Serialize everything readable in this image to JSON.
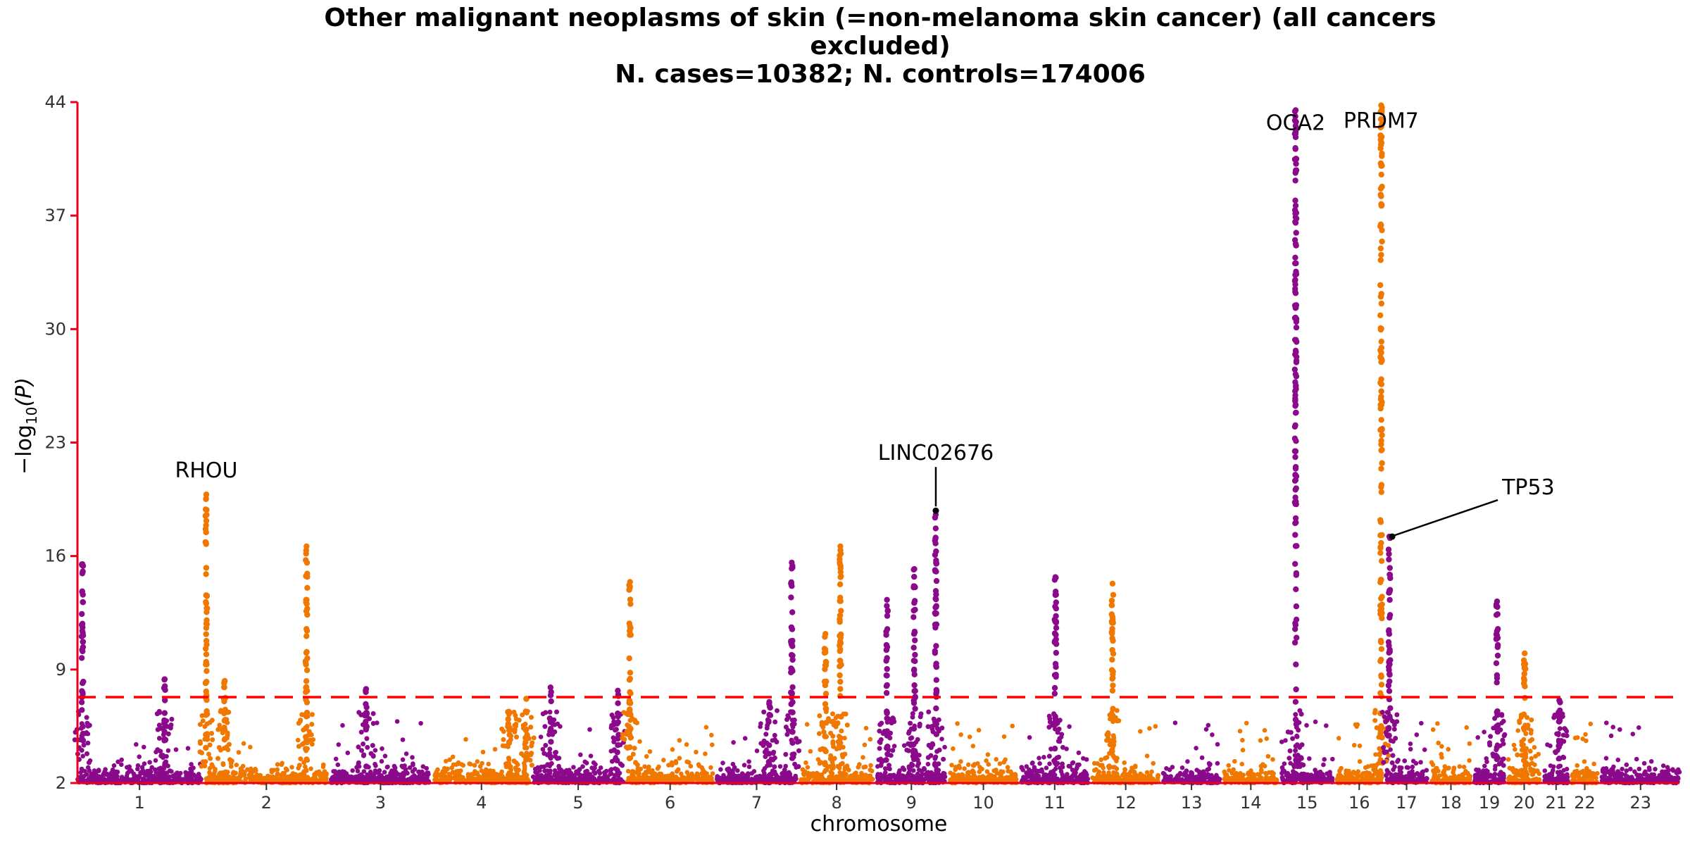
{
  "chart_data": {
    "type": "scatter",
    "title_lines": [
      "Other malignant neoplasms of skin (=non-melanoma skin cancer) (all cancers",
      "excluded)",
      "N. cases=10382; N. controls=174006"
    ],
    "xlabel": "chromosome",
    "ylabel": "−log",
    "ylabel_sub": "10",
    "ylabel_arg": "(P)",
    "ylim": [
      2,
      44
    ],
    "y_ticks": [
      2,
      9,
      16,
      23,
      30,
      37,
      44
    ],
    "significance_threshold": 7.3,
    "colors": {
      "odd": "#8b0a8b",
      "even": "#f07800",
      "threshold": "#ff0000",
      "axis": "#e8001c"
    },
    "chromosomes": [
      {
        "label": "1",
        "size": 249
      },
      {
        "label": "2",
        "size": 243
      },
      {
        "label": "3",
        "size": 198
      },
      {
        "label": "4",
        "size": 190
      },
      {
        "label": "5",
        "size": 181
      },
      {
        "label": "6",
        "size": 171
      },
      {
        "label": "7",
        "size": 159
      },
      {
        "label": "8",
        "size": 145
      },
      {
        "label": "9",
        "size": 138
      },
      {
        "label": "10",
        "size": 134
      },
      {
        "label": "11",
        "size": 135
      },
      {
        "label": "12",
        "size": 133
      },
      {
        "label": "13",
        "size": 114
      },
      {
        "label": "14",
        "size": 107
      },
      {
        "label": "15",
        "size": 102
      },
      {
        "label": "16",
        "size": 90
      },
      {
        "label": "17",
        "size": 83
      },
      {
        "label": "18",
        "size": 78
      },
      {
        "label": "19",
        "size": 59
      },
      {
        "label": "20",
        "size": 64
      },
      {
        "label": "21",
        "size": 47
      },
      {
        "label": "22",
        "size": 51
      },
      {
        "label": "23",
        "size": 156
      }
    ],
    "peaks": [
      {
        "chr": "1",
        "pos_mb": 10,
        "max_y": 15.5
      },
      {
        "chr": "1",
        "pos_mb": 175,
        "max_y": 8.4
      },
      {
        "chr": "2",
        "pos_mb": 1,
        "max_y": 19.8
      },
      {
        "chr": "2",
        "pos_mb": 38,
        "max_y": 8.3
      },
      {
        "chr": "2",
        "pos_mb": 202,
        "max_y": 16.6
      },
      {
        "chr": "3",
        "pos_mb": 70,
        "max_y": 7.8
      },
      {
        "chr": "4",
        "pos_mb": 150,
        "max_y": 6.4
      },
      {
        "chr": "4",
        "pos_mb": 185,
        "max_y": 7.2
      },
      {
        "chr": "5",
        "pos_mb": 35,
        "max_y": 7.9
      },
      {
        "chr": "5",
        "pos_mb": 170,
        "max_y": 7.7
      },
      {
        "chr": "6",
        "pos_mb": 5,
        "max_y": 14.4
      },
      {
        "chr": "7",
        "pos_mb": 105,
        "max_y": 7.0
      },
      {
        "chr": "7",
        "pos_mb": 150,
        "max_y": 15.6
      },
      {
        "chr": "8",
        "pos_mb": 50,
        "max_y": 11.2
      },
      {
        "chr": "8",
        "pos_mb": 80,
        "max_y": 16.6
      },
      {
        "chr": "9",
        "pos_mb": 20,
        "max_y": 13.3
      },
      {
        "chr": "9",
        "pos_mb": 75,
        "max_y": 15.2
      },
      {
        "chr": "9",
        "pos_mb": 118,
        "max_y": 18.8
      },
      {
        "chr": "11",
        "pos_mb": 69,
        "max_y": 14.7
      },
      {
        "chr": "12",
        "pos_mb": 40,
        "max_y": 14.3
      },
      {
        "chr": "15",
        "pos_mb": 28,
        "max_y": 43.5
      },
      {
        "chr": "16",
        "pos_mb": 89,
        "max_y": 43.8
      },
      {
        "chr": "17",
        "pos_mb": 7,
        "max_y": 17.2
      },
      {
        "chr": "19",
        "pos_mb": 45,
        "max_y": 13.2
      },
      {
        "chr": "20",
        "pos_mb": 33,
        "max_y": 10.0
      },
      {
        "chr": "21",
        "pos_mb": 30,
        "max_y": 7.1
      }
    ],
    "annotations": [
      {
        "label": "RHOU",
        "chr": "2",
        "pos_mb": 1,
        "y": 19.8,
        "leader": false
      },
      {
        "label": "LINC02676",
        "chr": "9",
        "pos_mb": 118,
        "y": 18.8,
        "leader": true
      },
      {
        "label": "OCA2",
        "chr": "15",
        "pos_mb": 28,
        "y": 43.5,
        "leader": false
      },
      {
        "label": "PRDM7",
        "chr": "16",
        "pos_mb": 89,
        "y": 43.8,
        "leader": false
      },
      {
        "label": "TP53",
        "chr": "17",
        "pos_mb": 7,
        "y": 17.2,
        "leader": true
      }
    ]
  }
}
